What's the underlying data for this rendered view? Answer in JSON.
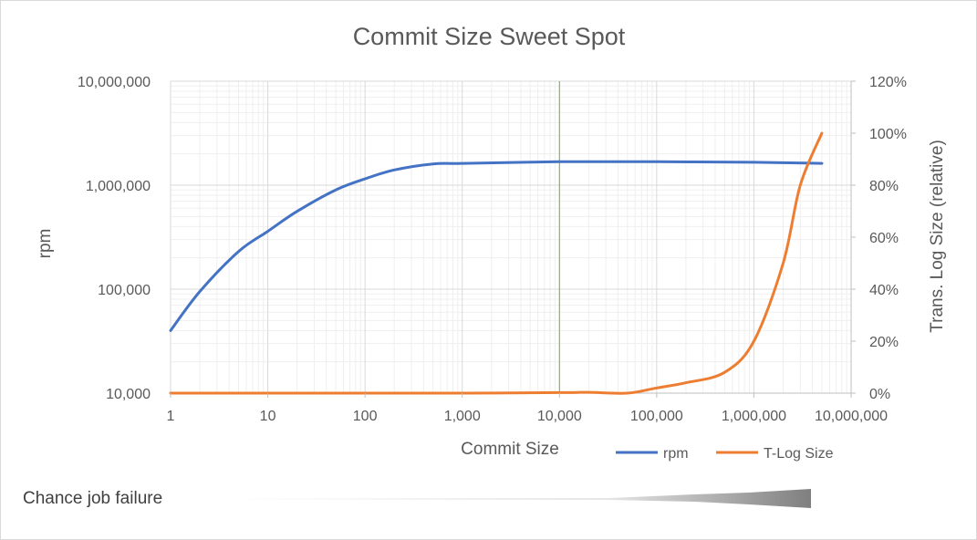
{
  "chart_data": {
    "type": "line",
    "title": "Commit Size Sweet Spot",
    "xlabel": "Commit Size",
    "ylabel": "rpm",
    "y2label": "Trans. Log Size (relative)",
    "xscale": "log",
    "yscale": "log",
    "xlim": [
      1,
      10000000
    ],
    "ylim": [
      10000,
      10000000
    ],
    "y2lim": [
      0,
      1.2
    ],
    "grid": true,
    "legend_position": "bottom-right",
    "x_ticks": [
      "1",
      "10",
      "100",
      "1,000",
      "10,000",
      "100,000",
      "1,000,000",
      "10,000,000"
    ],
    "y_ticks": [
      "10,000",
      "100,000",
      "1,000,000",
      "10,000,000"
    ],
    "y2_ticks": [
      "0%",
      "20%",
      "40%",
      "60%",
      "80%",
      "100%",
      "120%"
    ],
    "reference_line": {
      "x": 10000,
      "color": "#70ad47"
    },
    "series": [
      {
        "name": "rpm",
        "axis": "left",
        "color": "#4472c4",
        "x": [
          1,
          2,
          5,
          10,
          20,
          50,
          100,
          200,
          500,
          1000,
          10000,
          100000,
          1000000,
          5000000
        ],
        "values": [
          40000,
          95000,
          230000,
          360000,
          560000,
          900000,
          1150000,
          1400000,
          1600000,
          1620000,
          1680000,
          1680000,
          1660000,
          1620000
        ]
      },
      {
        "name": "T-Log Size",
        "axis": "right",
        "color": "#ed7d31",
        "x": [
          1,
          10,
          100,
          1000,
          10000,
          20000,
          50000,
          100000,
          200000,
          500000,
          1000000,
          2000000,
          3000000,
          5000000
        ],
        "values": [
          0,
          0,
          0,
          0,
          0.002,
          0.003,
          0.0,
          0.02,
          0.04,
          0.08,
          0.2,
          0.5,
          0.8,
          1.0
        ]
      }
    ]
  },
  "failure_indicator": {
    "label": "Chance job failure"
  },
  "colors": {
    "text": "#595959",
    "gridline_major": "#d9d9d9",
    "gridline_minor": "#efefef",
    "axis_line": "#bfbfbf",
    "wedge": "#7f7f7f"
  }
}
